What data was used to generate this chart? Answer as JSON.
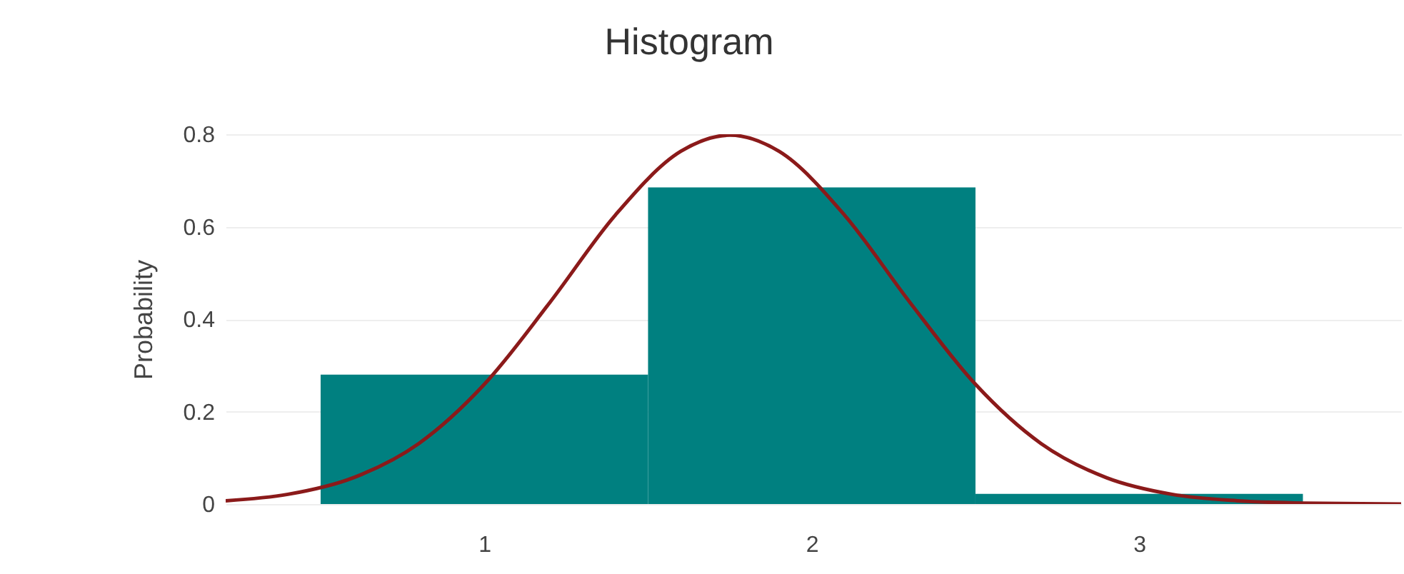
{
  "chart_data": {
    "type": "histogram",
    "title": "Histogram",
    "ylabel": "Probability",
    "series": [
      {
        "type": "histogram",
        "color": "#008080",
        "bins": [
          0.5,
          1.5,
          2.5,
          3.5
        ],
        "values": [
          0.28,
          0.685,
          0.022
        ]
      },
      {
        "type": "line",
        "color": "#8b1a1a",
        "x": [
          0.21,
          0.4,
          0.6,
          0.8,
          1.0,
          1.2,
          1.4,
          1.6,
          1.75,
          1.9,
          2.1,
          2.3,
          2.5,
          2.7,
          2.9,
          3.1,
          3.3,
          3.5,
          3.8
        ],
        "values": [
          0.007,
          0.021,
          0.057,
          0.131,
          0.259,
          0.436,
          0.625,
          0.763,
          0.798,
          0.763,
          0.625,
          0.436,
          0.259,
          0.131,
          0.057,
          0.021,
          0.007,
          0.002,
          0.0
        ]
      }
    ],
    "xlim": [
      0.21,
      3.8
    ],
    "xticks": [
      1,
      2,
      3
    ],
    "ylim": [
      0,
      0.8
    ],
    "yticks": [
      0,
      0.2,
      0.4,
      0.6,
      0.8
    ],
    "grid": "y"
  }
}
